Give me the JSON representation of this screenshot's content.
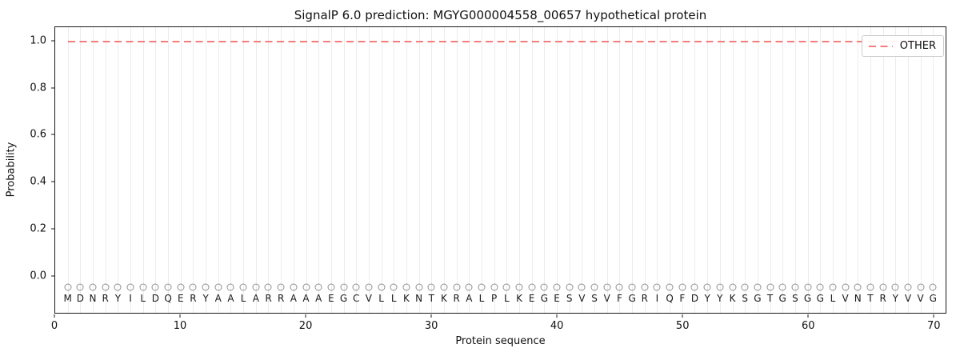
{
  "chart_data": {
    "type": "line",
    "title": "SignalP 6.0 prediction: MGYG000004558_00657 hypothetical protein",
    "xlabel": "Protein sequence",
    "ylabel": "Probability",
    "xlim": [
      0,
      71
    ],
    "ylim": [
      -0.16,
      1.06
    ],
    "x_ticks": [
      "0",
      "10",
      "20",
      "30",
      "40",
      "50",
      "60",
      "70"
    ],
    "x_tick_values": [
      0,
      10,
      20,
      30,
      40,
      50,
      60,
      70
    ],
    "y_ticks": [
      "0.0",
      "0.2",
      "0.4",
      "0.6",
      "0.8",
      "1.0"
    ],
    "y_tick_values": [
      0.0,
      0.2,
      0.4,
      0.6,
      0.8,
      1.0
    ],
    "grid": "vertical gridline at each residue position 1-70",
    "series": [
      {
        "name": "OTHER",
        "style": "dashed",
        "color": "#f47c7c",
        "y_constant": 1.0,
        "x_start": 1,
        "x_end": 70
      }
    ],
    "legend": {
      "position": "upper right",
      "entries": [
        {
          "label": "OTHER",
          "color": "#f47c7c",
          "style": "dashed"
        }
      ]
    },
    "sequence": "MDNRYILDQERYAALARRAAAEGCVLLKNTKRALPLKEGESVSVFGRIQFDYYKSGTGSGGLVNTRYVVG",
    "sequence_length": 70,
    "marker_row": {
      "symbol": "circle-open",
      "color": "#909090",
      "y": -0.05
    },
    "sequence_row_y": -0.1,
    "colors": {
      "other_line": "#f47c7c",
      "gridline": "#ebebeb",
      "marker": "#909090",
      "letter": "#1a1a1a",
      "spine": "#1a1a1a",
      "legend_border": "#cccccc"
    }
  }
}
